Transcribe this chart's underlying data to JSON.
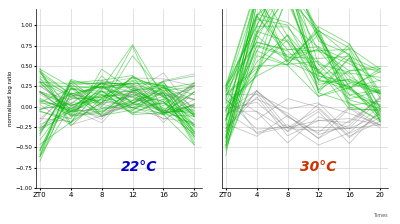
{
  "background_color": "#ffffff",
  "x_ticks": [
    "ZT0",
    "4",
    "8",
    "12",
    "16",
    "20"
  ],
  "x_values": [
    0,
    4,
    8,
    12,
    16,
    20
  ],
  "ylabel": "normalised log ratio",
  "label_22": "22°C",
  "label_30": "30°C",
  "label_22_color": "#0000cc",
  "label_30_color": "#cc3300",
  "grid_color": "#cccccc",
  "line_alpha_green": 0.5,
  "line_alpha_gray": 0.4,
  "line_width": 0.6,
  "ylim": [
    -1.0,
    1.2
  ],
  "times_label": "Times",
  "green_color": "#00bb00",
  "gray_color": "#777777"
}
